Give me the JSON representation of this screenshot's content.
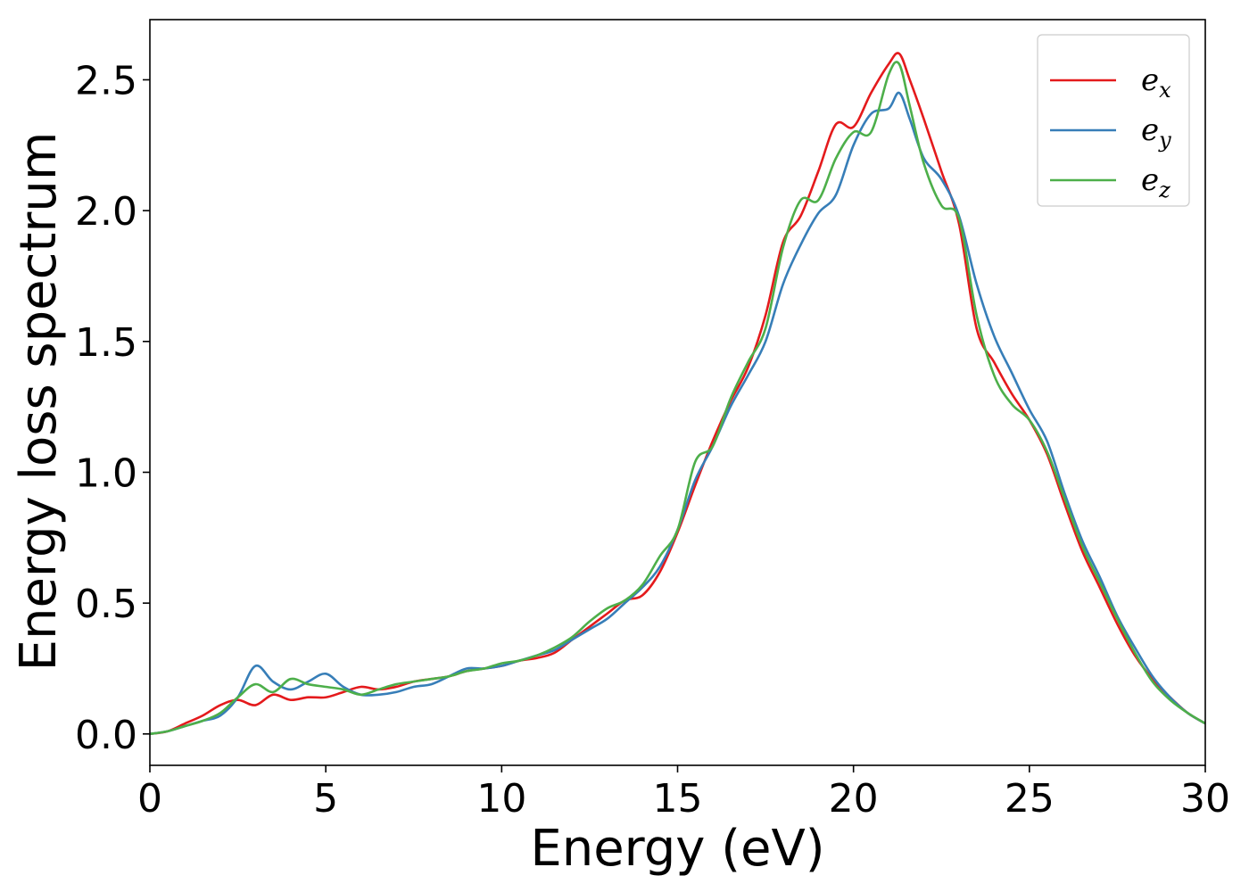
{
  "chart_data": {
    "type": "line",
    "title": "",
    "xlabel": "Energy (eV)",
    "ylabel": "Energy loss spectrum",
    "xlim": [
      0,
      30
    ],
    "ylim": [
      -0.12,
      2.73
    ],
    "xticks": [
      0,
      5,
      10,
      15,
      20,
      25,
      30
    ],
    "xtick_labels": [
      "0",
      "5",
      "10",
      "15",
      "20",
      "25",
      "30"
    ],
    "yticks": [
      0.0,
      0.5,
      1.0,
      1.5,
      2.0,
      2.5
    ],
    "ytick_labels": [
      "0.0",
      "0.5",
      "1.0",
      "1.5",
      "2.0",
      "2.5"
    ],
    "grid": false,
    "legend_position": "top-right",
    "series": [
      {
        "name": "e_x",
        "legend_base": "e",
        "legend_sub": "x",
        "color": "#e41a1c",
        "x": [
          0,
          0.5,
          1,
          1.5,
          2,
          2.5,
          3,
          3.5,
          4,
          4.5,
          5,
          5.5,
          6,
          6.5,
          7,
          7.5,
          8,
          8.5,
          9,
          9.5,
          10,
          10.5,
          11,
          11.5,
          12,
          12.5,
          13,
          13.5,
          14,
          14.5,
          15,
          15.5,
          16,
          16.5,
          17,
          17.5,
          18,
          18.5,
          19,
          19.5,
          20,
          20.5,
          21,
          21.3,
          21.6,
          22,
          22.5,
          23,
          23.5,
          24,
          24.5,
          25,
          25.5,
          26,
          26.5,
          27,
          27.5,
          28,
          28.5,
          29,
          29.5,
          30
        ],
        "y": [
          0.0,
          0.01,
          0.04,
          0.07,
          0.11,
          0.13,
          0.11,
          0.15,
          0.13,
          0.14,
          0.14,
          0.16,
          0.18,
          0.17,
          0.18,
          0.2,
          0.21,
          0.22,
          0.24,
          0.25,
          0.26,
          0.28,
          0.29,
          0.31,
          0.36,
          0.41,
          0.46,
          0.51,
          0.53,
          0.62,
          0.77,
          0.95,
          1.12,
          1.27,
          1.4,
          1.6,
          1.88,
          1.98,
          2.15,
          2.33,
          2.32,
          2.45,
          2.56,
          2.6,
          2.5,
          2.35,
          2.15,
          1.95,
          1.55,
          1.42,
          1.3,
          1.2,
          1.07,
          0.88,
          0.7,
          0.56,
          0.42,
          0.3,
          0.21,
          0.14,
          0.08,
          0.04
        ]
      },
      {
        "name": "e_y",
        "legend_base": "e",
        "legend_sub": "y",
        "color": "#377eb8",
        "x": [
          0,
          0.5,
          1,
          1.5,
          2,
          2.5,
          3,
          3.5,
          4,
          4.5,
          5,
          5.5,
          6,
          6.5,
          7,
          7.5,
          8,
          8.5,
          9,
          9.5,
          10,
          10.5,
          11,
          11.5,
          12,
          12.5,
          13,
          13.5,
          14,
          14.5,
          15,
          15.5,
          16,
          16.5,
          17,
          17.5,
          18,
          18.5,
          19,
          19.5,
          20,
          20.5,
          21,
          21.3,
          21.6,
          22,
          22.5,
          23,
          23.5,
          24,
          24.5,
          25,
          25.5,
          26,
          26.5,
          27,
          27.5,
          28,
          28.5,
          29,
          29.5,
          30
        ],
        "y": [
          0.0,
          0.01,
          0.03,
          0.05,
          0.07,
          0.14,
          0.26,
          0.2,
          0.17,
          0.2,
          0.23,
          0.18,
          0.15,
          0.15,
          0.16,
          0.18,
          0.19,
          0.22,
          0.25,
          0.25,
          0.26,
          0.28,
          0.3,
          0.32,
          0.36,
          0.4,
          0.44,
          0.5,
          0.56,
          0.64,
          0.78,
          0.97,
          1.1,
          1.25,
          1.37,
          1.5,
          1.72,
          1.87,
          1.99,
          2.06,
          2.25,
          2.37,
          2.39,
          2.45,
          2.35,
          2.2,
          2.12,
          1.98,
          1.72,
          1.52,
          1.38,
          1.24,
          1.12,
          0.92,
          0.74,
          0.6,
          0.45,
          0.33,
          0.22,
          0.14,
          0.08,
          0.04
        ]
      },
      {
        "name": "e_z",
        "legend_base": "e",
        "legend_sub": "z",
        "color": "#4daf4a",
        "x": [
          0,
          0.5,
          1,
          1.5,
          2,
          2.5,
          3,
          3.5,
          4,
          4.5,
          5,
          5.5,
          6,
          6.5,
          7,
          7.5,
          8,
          8.5,
          9,
          9.5,
          10,
          10.5,
          11,
          11.5,
          12,
          12.5,
          13,
          13.5,
          14,
          14.5,
          15,
          15.5,
          16,
          16.5,
          17,
          17.5,
          18,
          18.5,
          19,
          19.5,
          20,
          20.5,
          21,
          21.3,
          21.6,
          22,
          22.5,
          23,
          23.5,
          24,
          24.5,
          25,
          25.5,
          26,
          26.5,
          27,
          27.5,
          28,
          28.5,
          29,
          29.5,
          30
        ],
        "y": [
          0.0,
          0.01,
          0.03,
          0.05,
          0.08,
          0.14,
          0.19,
          0.16,
          0.21,
          0.19,
          0.18,
          0.17,
          0.15,
          0.17,
          0.19,
          0.2,
          0.21,
          0.22,
          0.24,
          0.25,
          0.27,
          0.28,
          0.3,
          0.33,
          0.37,
          0.43,
          0.48,
          0.51,
          0.57,
          0.68,
          0.78,
          1.04,
          1.1,
          1.28,
          1.42,
          1.55,
          1.86,
          2.04,
          2.04,
          2.2,
          2.3,
          2.3,
          2.52,
          2.56,
          2.4,
          2.18,
          2.02,
          1.97,
          1.6,
          1.37,
          1.26,
          1.2,
          1.08,
          0.9,
          0.72,
          0.58,
          0.44,
          0.31,
          0.2,
          0.13,
          0.08,
          0.04
        ]
      }
    ]
  }
}
